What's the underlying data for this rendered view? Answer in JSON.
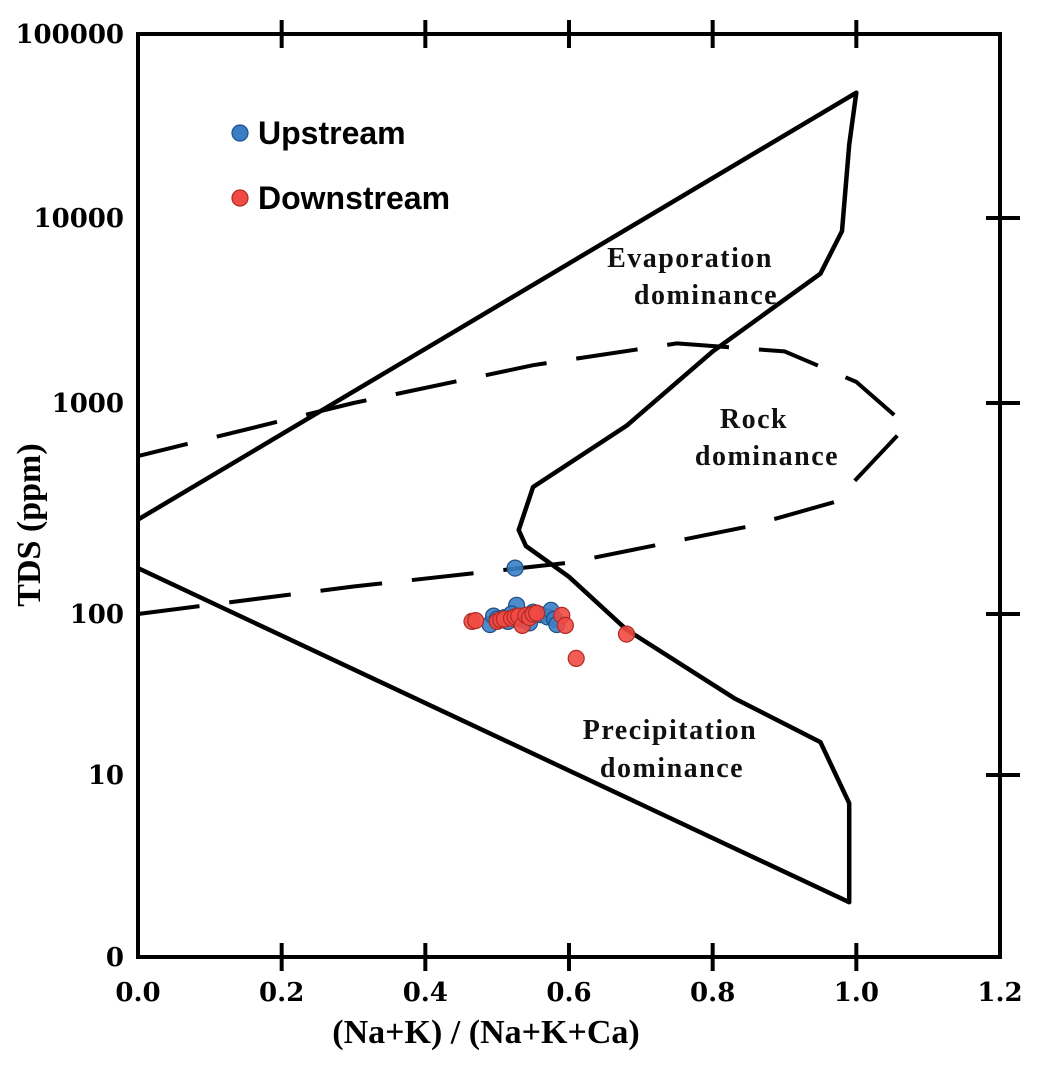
{
  "chart_data": {
    "type": "scatter",
    "xlabel": "(Na+K) / (Na+K+Ca)",
    "ylabel": "TDS (ppm)",
    "xlim": [
      0.0,
      1.2
    ],
    "y_scale": "log",
    "x_ticks": [
      "0.0",
      "0.2",
      "0.4",
      "0.6",
      "0.8",
      "1.0",
      "1.2"
    ],
    "y_ticks": [
      "0",
      "10",
      "100",
      "1000",
      "10000",
      "100000"
    ],
    "legend_position": "top-left",
    "region_labels": {
      "evaporation_line1": "Evaporation",
      "evaporation_line2": "dominance",
      "rock_line1": "Rock",
      "rock_line2": "dominance",
      "precipitation_line1": "Precipitation",
      "precipitation_line2": "dominance"
    },
    "boundary_outer": [
      [
        0.0,
        280
      ],
      [
        1.0,
        48000
      ],
      [
        0.99,
        25000
      ],
      [
        0.98,
        8500
      ],
      [
        0.95,
        5000
      ],
      [
        0.8,
        1900
      ],
      [
        0.68,
        780
      ],
      [
        0.55,
        400
      ],
      [
        0.53,
        250
      ],
      [
        0.54,
        210
      ],
      [
        0.6,
        150
      ],
      [
        0.68,
        80
      ],
      [
        0.83,
        30
      ],
      [
        0.95,
        16
      ],
      [
        0.99,
        7
      ],
      [
        0.99,
        2
      ],
      [
        0.0,
        165
      ]
    ],
    "boundary_rock": [
      [
        0.0,
        100
      ],
      [
        0.3,
        135
      ],
      [
        0.6,
        175
      ],
      [
        0.85,
        260
      ],
      [
        0.97,
        340
      ],
      [
        1.07,
        780
      ],
      [
        1.0,
        1300
      ],
      [
        0.9,
        1900
      ],
      [
        0.75,
        2100
      ],
      [
        0.55,
        1600
      ],
      [
        0.3,
        1000
      ],
      [
        0.0,
        560
      ]
    ],
    "series": [
      {
        "name": "Upstream",
        "color": "#3a7fc6",
        "points": [
          [
            0.525,
            165
          ],
          [
            0.527,
            110
          ],
          [
            0.49,
            86
          ],
          [
            0.495,
            97
          ],
          [
            0.5,
            93
          ],
          [
            0.51,
            95
          ],
          [
            0.515,
            90
          ],
          [
            0.52,
            100
          ],
          [
            0.53,
            96
          ],
          [
            0.535,
            92
          ],
          [
            0.54,
            98
          ],
          [
            0.545,
            88
          ],
          [
            0.55,
            102
          ],
          [
            0.56,
            99
          ],
          [
            0.57,
            96
          ],
          [
            0.575,
            104
          ],
          [
            0.58,
            93
          ],
          [
            0.583,
            86
          ]
        ]
      },
      {
        "name": "Downstream",
        "color": "#ef4a43",
        "points": [
          [
            0.465,
            90
          ],
          [
            0.47,
            91
          ],
          [
            0.5,
            90
          ],
          [
            0.505,
            92
          ],
          [
            0.51,
            93
          ],
          [
            0.52,
            94
          ],
          [
            0.525,
            96
          ],
          [
            0.53,
            97
          ],
          [
            0.535,
            85
          ],
          [
            0.54,
            98
          ],
          [
            0.545,
            95
          ],
          [
            0.55,
            100
          ],
          [
            0.555,
            101
          ],
          [
            0.59,
            98
          ],
          [
            0.595,
            85
          ],
          [
            0.61,
            53
          ],
          [
            0.68,
            75
          ]
        ]
      }
    ]
  }
}
